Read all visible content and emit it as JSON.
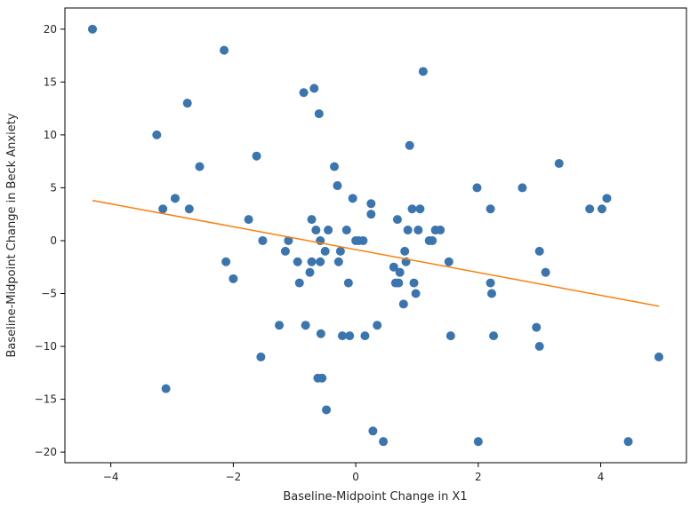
{
  "chart_data": {
    "type": "scatter",
    "title": "",
    "xlabel": "Baseline-Midpoint Change in X1",
    "ylabel": "Baseline-Midpoint Change in Beck Anxiety",
    "xlim": [
      -4.75,
      5.4
    ],
    "ylim": [
      -21,
      22
    ],
    "x_ticks": [
      -4,
      -2,
      0,
      2,
      4
    ],
    "y_ticks": [
      -20,
      -15,
      -10,
      -5,
      0,
      5,
      10,
      15,
      20
    ],
    "grid": false,
    "legend": "none",
    "colors": {
      "points": "#3a75b0",
      "fit_line": "#ff7f0e",
      "axes": "#000000"
    },
    "series": [
      {
        "values_x": [
          -4.3,
          -3.25,
          -3.15,
          -3.1,
          -2.95,
          -2.75,
          -2.72,
          -2.55,
          -2.15,
          -2.12,
          -2.0,
          -1.75,
          -1.62,
          -1.55,
          -1.52,
          -1.25,
          -1.15,
          -1.1,
          -0.95,
          -0.92,
          -0.85,
          -0.82,
          -0.75,
          -0.72,
          -0.72,
          -0.68,
          -0.65,
          -0.62,
          -0.6,
          -0.58,
          -0.58,
          -0.57,
          -0.55,
          -0.5,
          -0.48,
          -0.45,
          -0.35,
          -0.3,
          -0.28,
          -0.25,
          -0.22,
          -0.15,
          -0.12,
          -0.1,
          -0.05,
          0.0,
          0.05,
          0.12,
          0.15,
          0.25,
          0.25,
          0.28,
          0.35,
          0.45,
          0.62,
          0.65,
          0.68,
          0.7,
          0.72,
          0.78,
          0.8,
          0.82,
          0.85,
          0.88,
          0.92,
          0.95,
          0.98,
          1.02,
          1.05,
          1.1,
          1.2,
          1.25,
          1.3,
          1.38,
          1.52,
          1.55,
          1.98,
          2.0,
          2.2,
          2.2,
          2.22,
          2.25,
          2.72,
          2.95,
          3.0,
          3.0,
          3.1,
          3.32,
          3.82,
          4.02,
          4.1,
          4.45,
          4.95
        ],
        "values_y": [
          20,
          10,
          3,
          -14,
          4,
          13,
          3,
          7,
          18,
          -2,
          -3.6,
          2,
          8,
          -11,
          0,
          -8,
          -1,
          0,
          -2,
          -4,
          14,
          -8,
          -3,
          -2,
          2,
          14.4,
          1,
          -13,
          12,
          0,
          -2,
          -8.8,
          -13,
          -1,
          -16,
          1,
          7,
          5.2,
          -2,
          -1,
          -9,
          1,
          -4,
          -9,
          4,
          0,
          0,
          0,
          -9,
          3.5,
          2.5,
          -18,
          -8,
          -19,
          -2.5,
          -4,
          2,
          -4,
          -3,
          -6,
          -1,
          -2,
          1,
          9,
          3,
          -4,
          -5,
          1,
          3,
          16,
          0,
          0,
          1,
          1,
          -2,
          -9,
          5,
          -19,
          3,
          -4,
          -5,
          -9,
          5,
          -8.2,
          -1,
          -10,
          -3,
          7.3,
          3,
          3,
          4,
          -19,
          -11
        ]
      }
    ],
    "fit_line": {
      "x": [
        -4.3,
        4.95
      ],
      "y": [
        3.8,
        -6.2
      ]
    }
  }
}
